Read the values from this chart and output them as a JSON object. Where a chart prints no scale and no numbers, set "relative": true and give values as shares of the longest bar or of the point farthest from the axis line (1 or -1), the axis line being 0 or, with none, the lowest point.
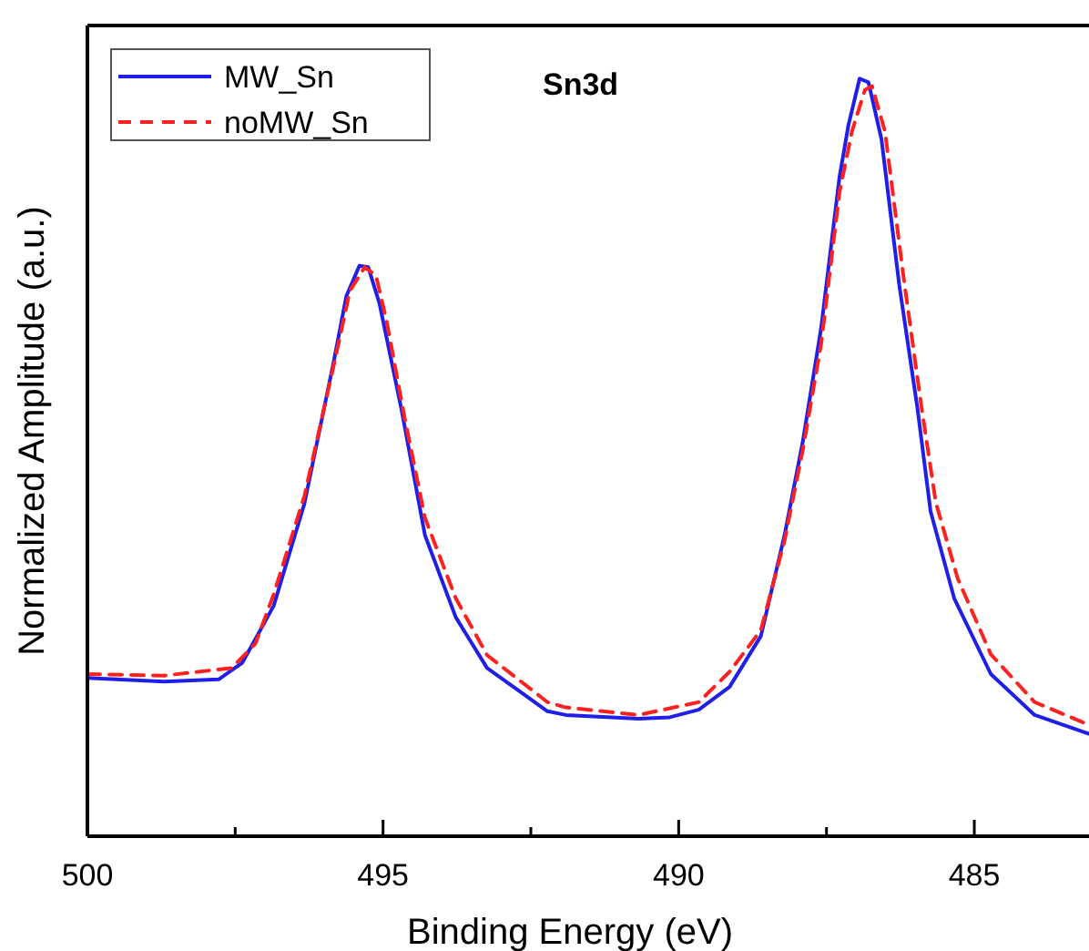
{
  "chart_data": {
    "type": "line",
    "title": "Sn3d",
    "xlabel": "Binding Energy (eV)",
    "ylabel": "Normalized Amplitude (a.u.)",
    "relative": true,
    "xlim": [
      500,
      483.06
    ],
    "xticks": [
      500,
      {
        "value": 497.5,
        "label": null
      },
      495,
      {
        "value": 492.5,
        "label": null
      },
      490,
      {
        "value": 487.5,
        "label": null
      },
      485
    ],
    "legend": "top left",
    "grid": false,
    "series": [
      {
        "name": "MW_Sn",
        "color": "#1f1fe8",
        "line_style": "solid",
        "x": [
          500.0,
          498.7,
          497.78,
          497.38,
          496.85,
          496.33,
          495.83,
          495.62,
          495.4,
          495.25,
          495.06,
          494.69,
          494.29,
          493.77,
          493.24,
          492.22,
          491.91,
          490.68,
          490.15,
          489.66,
          489.14,
          488.61,
          488.21,
          487.9,
          487.59,
          487.28,
          487.13,
          486.94,
          486.79,
          486.57,
          486.27,
          485.96,
          485.74,
          485.34,
          484.72,
          483.98,
          483.06
        ],
        "values": [
          0.209,
          0.204,
          0.207,
          0.229,
          0.304,
          0.439,
          0.628,
          0.713,
          0.753,
          0.751,
          0.703,
          0.564,
          0.397,
          0.289,
          0.222,
          0.165,
          0.16,
          0.155,
          0.157,
          0.167,
          0.197,
          0.264,
          0.397,
          0.521,
          0.671,
          0.87,
          0.938,
          1.0,
          0.995,
          0.92,
          0.728,
          0.564,
          0.429,
          0.314,
          0.214,
          0.16,
          0.135
        ]
      },
      {
        "name": "noMW_Sn",
        "color": "#ff2020",
        "line_style": "dashed",
        "x": [
          500.0,
          498.7,
          497.56,
          497.16,
          496.85,
          496.33,
          495.83,
          495.56,
          495.31,
          495.12,
          494.94,
          494.63,
          494.29,
          493.77,
          493.24,
          492.22,
          491.91,
          490.68,
          489.66,
          489.14,
          488.61,
          488.21,
          487.9,
          487.59,
          487.28,
          487.07,
          486.85,
          486.73,
          486.51,
          486.2,
          485.9,
          485.65,
          485.28,
          484.72,
          483.98,
          483.06
        ],
        "values": [
          0.214,
          0.212,
          0.222,
          0.254,
          0.319,
          0.449,
          0.623,
          0.72,
          0.751,
          0.74,
          0.68,
          0.55,
          0.42,
          0.314,
          0.239,
          0.177,
          0.17,
          0.16,
          0.177,
          0.217,
          0.272,
          0.39,
          0.51,
          0.65,
          0.85,
          0.93,
          0.985,
          0.99,
          0.93,
          0.74,
          0.57,
          0.44,
          0.34,
          0.24,
          0.177,
          0.147
        ]
      }
    ]
  }
}
